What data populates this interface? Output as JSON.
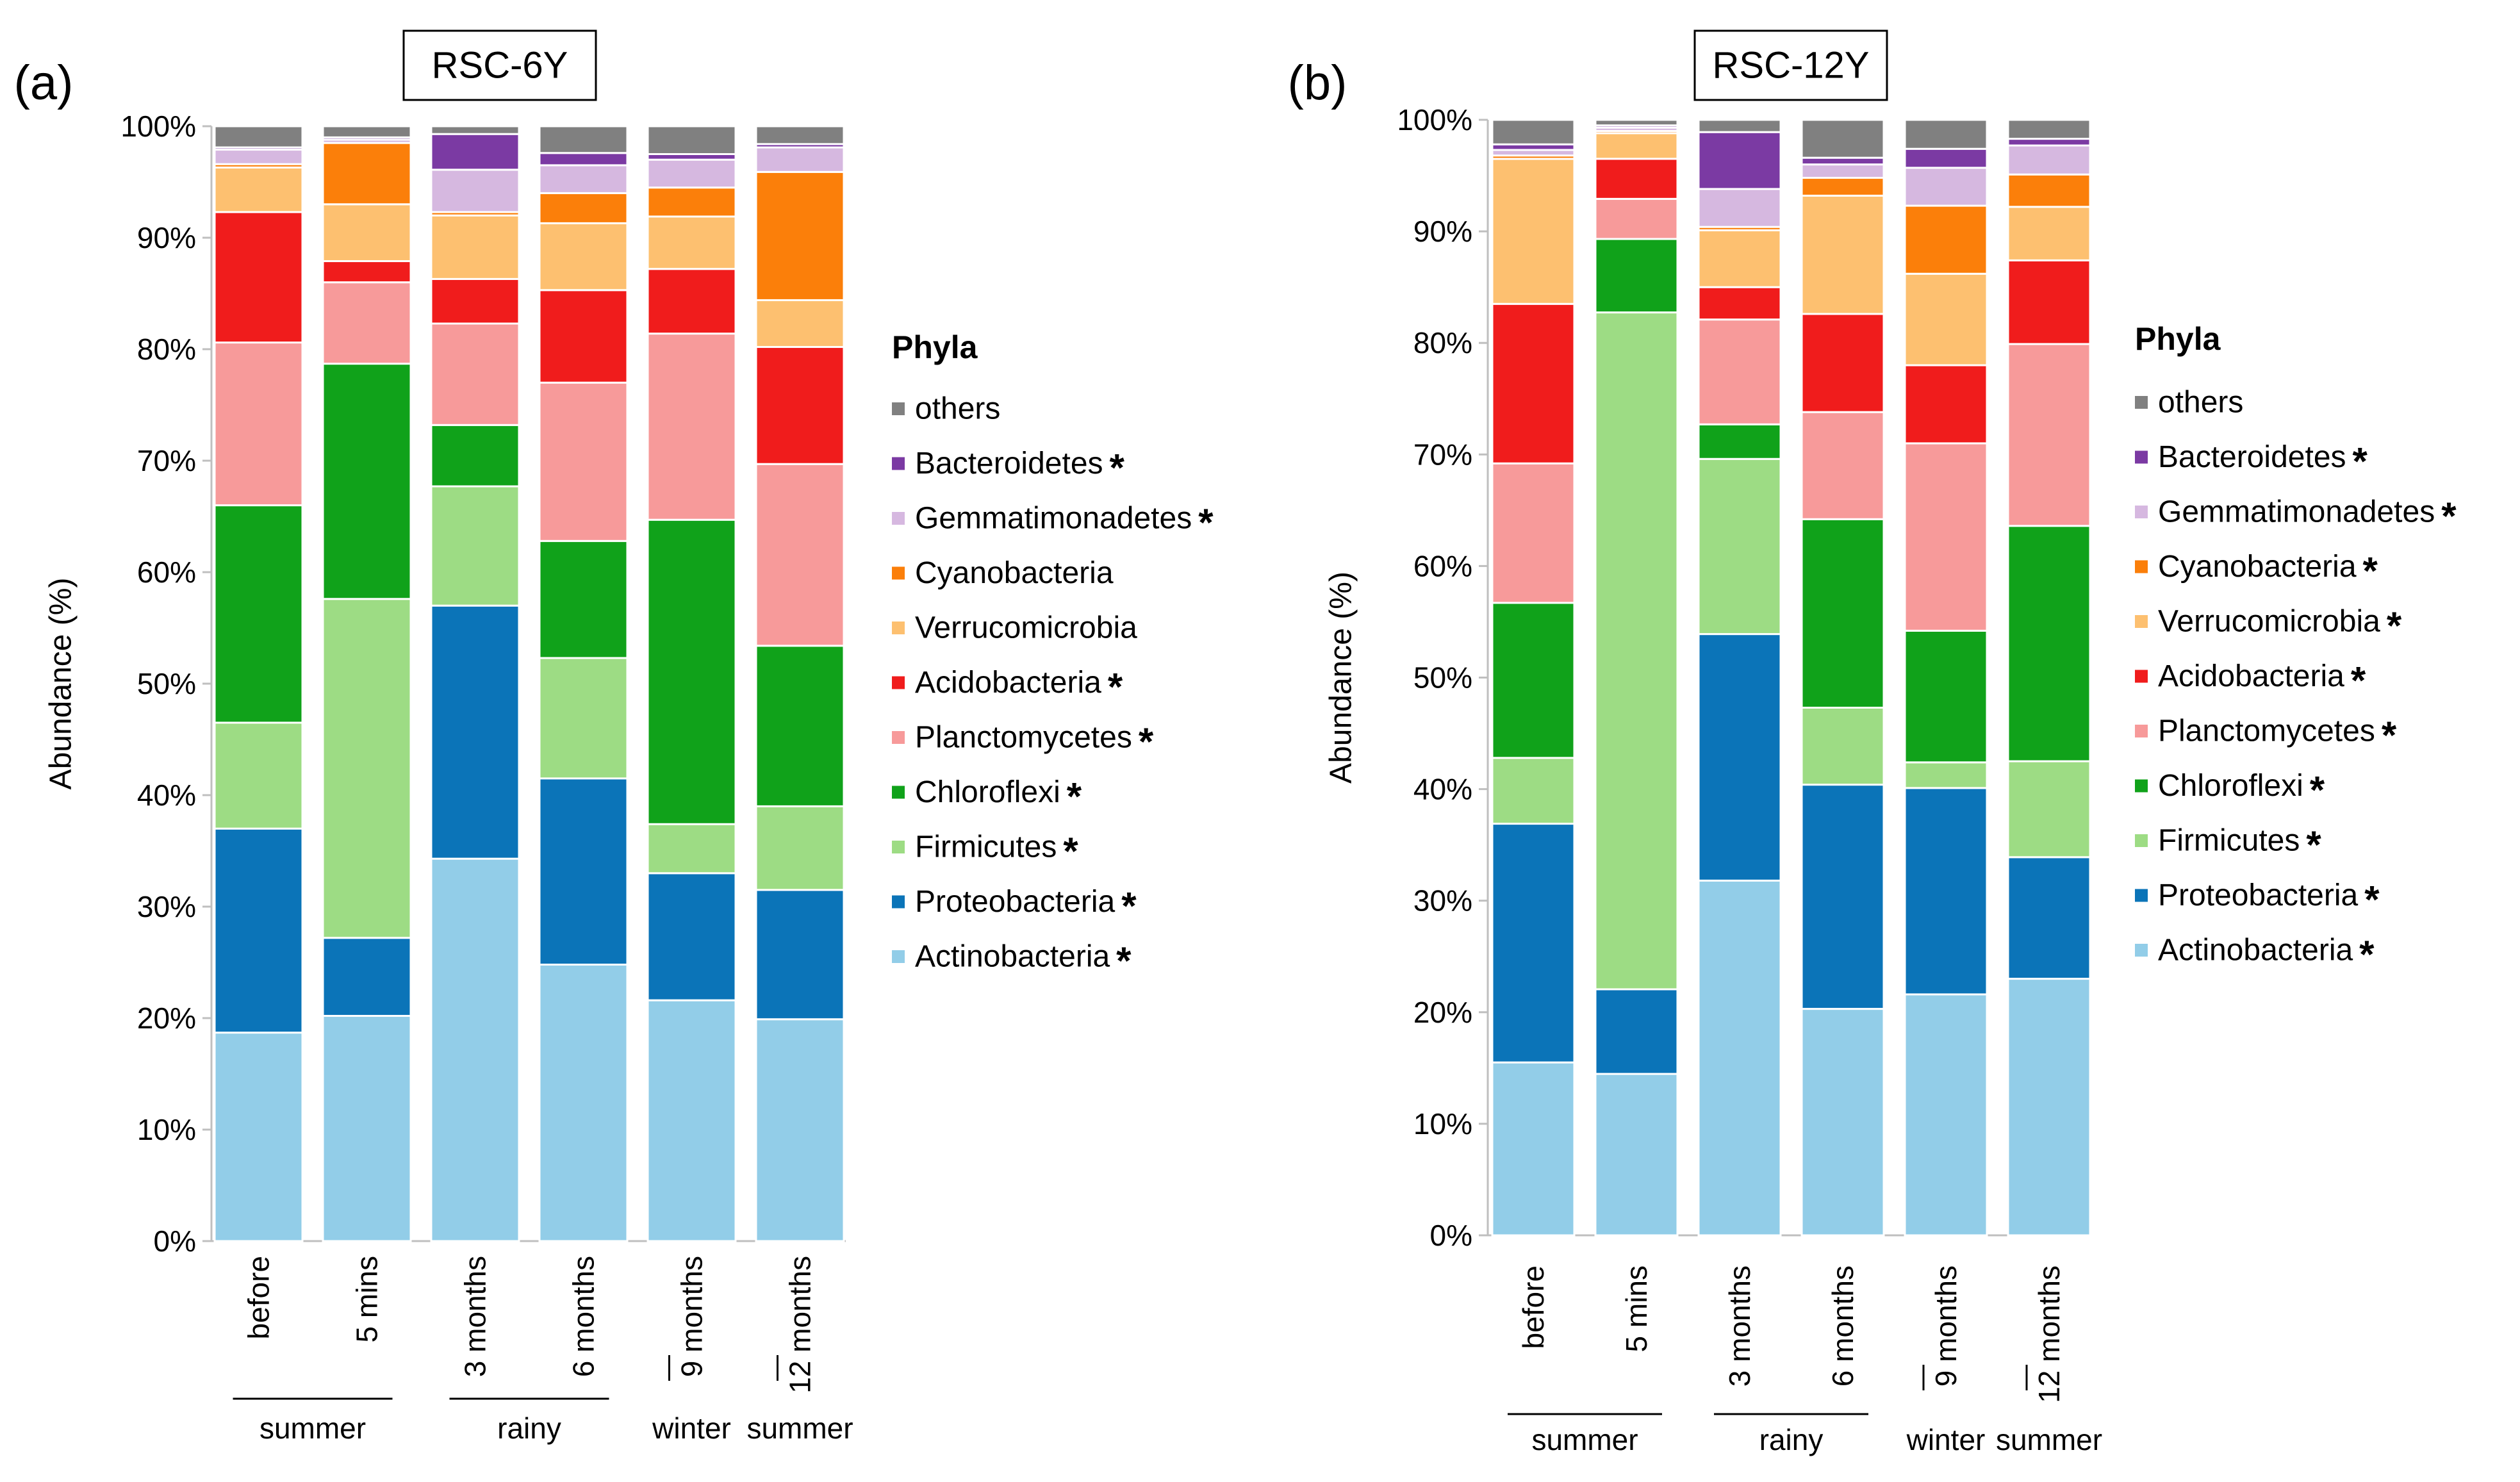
{
  "chart_data": [
    {
      "panel_label": "(a)",
      "title": "RSC-6Y",
      "type": "bar",
      "stacked": true,
      "xlabel": "",
      "ylabel": "Abundance (%)",
      "ylim": [
        0,
        100
      ],
      "yticks": [
        "0%",
        "10%",
        "20%",
        "30%",
        "40%",
        "50%",
        "60%",
        "70%",
        "80%",
        "90%",
        "100%"
      ],
      "grid": false,
      "legend_title": "Phyla",
      "legend_position": "right",
      "categories": [
        "before",
        "5 mins",
        "3 months",
        "6 months",
        "9 months",
        "12 months"
      ],
      "season_groups": [
        {
          "label": "summer",
          "from": 0,
          "to": 1,
          "style": "line"
        },
        {
          "label": "rainy",
          "from": 2,
          "to": 3,
          "style": "line"
        },
        {
          "label": "winter",
          "from": 4,
          "to": 4,
          "style": "tick"
        },
        {
          "label": "summer",
          "from": 5,
          "to": 5,
          "style": "tick"
        }
      ],
      "series": [
        {
          "name": "Actinobacteria",
          "marker": "*",
          "values": [
            18.7,
            20.2,
            34.3,
            24.8,
            21.6,
            19.9
          ]
        },
        {
          "name": "Proteobacteria",
          "marker": "*",
          "values": [
            18.3,
            7.0,
            22.7,
            16.7,
            11.4,
            11.6
          ]
        },
        {
          "name": "Firmicutes",
          "marker": "*",
          "values": [
            9.5,
            30.4,
            10.7,
            10.8,
            4.4,
            7.5
          ]
        },
        {
          "name": "Chloroflexi",
          "marker": "*",
          "values": [
            19.5,
            21.1,
            5.5,
            10.5,
            27.3,
            14.4
          ]
        },
        {
          "name": "Planctomycetes",
          "marker": "*",
          "values": [
            14.6,
            7.3,
            9.1,
            14.2,
            16.7,
            16.3
          ]
        },
        {
          "name": "Acidobacteria",
          "marker": "*",
          "values": [
            11.7,
            1.9,
            4.0,
            8.3,
            5.8,
            10.5
          ]
        },
        {
          "name": "Verrucomicrobia",
          "marker": "",
          "values": [
            4.0,
            5.1,
            5.7,
            6.0,
            4.7,
            4.2
          ]
        },
        {
          "name": "Cyanobacteria",
          "marker": "",
          "values": [
            0.3,
            5.5,
            0.3,
            2.7,
            2.6,
            11.5
          ]
        },
        {
          "name": "Gemmatimonadetes",
          "marker": "*",
          "values": [
            1.3,
            0.3,
            3.8,
            2.5,
            2.5,
            2.2
          ]
        },
        {
          "name": "Bacteroidetes",
          "marker": "*",
          "values": [
            0.2,
            0.2,
            3.2,
            1.1,
            0.5,
            0.3
          ]
        },
        {
          "name": "others",
          "marker": "",
          "values": [
            1.9,
            1.0,
            0.7,
            2.4,
            2.5,
            1.6
          ]
        }
      ]
    },
    {
      "panel_label": "(b)",
      "title": "RSC-12Y",
      "type": "bar",
      "stacked": true,
      "xlabel": "",
      "ylabel": "Abundance (%)",
      "ylim": [
        0,
        100
      ],
      "yticks": [
        "0%",
        "10%",
        "20%",
        "30%",
        "40%",
        "50%",
        "60%",
        "70%",
        "80%",
        "90%",
        "100%"
      ],
      "grid": false,
      "legend_title": "Phyla",
      "legend_position": "right",
      "categories": [
        "before",
        "5 mins",
        "3 months",
        "6 months",
        "9 months",
        "12 months"
      ],
      "season_groups": [
        {
          "label": "summer",
          "from": 0,
          "to": 1,
          "style": "line"
        },
        {
          "label": "rainy",
          "from": 2,
          "to": 3,
          "style": "line"
        },
        {
          "label": "winter",
          "from": 4,
          "to": 4,
          "style": "tick"
        },
        {
          "label": "summer",
          "from": 5,
          "to": 5,
          "style": "tick"
        }
      ],
      "series": [
        {
          "name": "Actinobacteria",
          "marker": "*",
          "values": [
            15.5,
            14.5,
            31.8,
            20.3,
            21.6,
            23.0
          ]
        },
        {
          "name": "Proteobacteria",
          "marker": "*",
          "values": [
            21.4,
            7.6,
            22.1,
            20.1,
            18.5,
            10.9
          ]
        },
        {
          "name": "Firmicutes",
          "marker": "*",
          "values": [
            5.9,
            60.8,
            15.7,
            6.9,
            2.3,
            8.6
          ]
        },
        {
          "name": "Chloroflexi",
          "marker": "*",
          "values": [
            13.9,
            6.6,
            3.1,
            16.9,
            11.8,
            21.1
          ]
        },
        {
          "name": "Planctomycetes",
          "marker": "*",
          "values": [
            12.5,
            3.6,
            9.4,
            9.6,
            16.8,
            16.3
          ]
        },
        {
          "name": "Acidobacteria",
          "marker": "*",
          "values": [
            14.3,
            3.6,
            2.9,
            8.8,
            7.0,
            7.5
          ]
        },
        {
          "name": "Verrucomicrobia",
          "marker": "*",
          "values": [
            13.0,
            2.3,
            5.1,
            10.6,
            8.2,
            4.8
          ]
        },
        {
          "name": "Cyanobacteria",
          "marker": "*",
          "values": [
            0.3,
            0.2,
            0.3,
            1.6,
            6.1,
            2.9
          ]
        },
        {
          "name": "Gemmatimonadetes",
          "marker": "*",
          "values": [
            0.5,
            0.3,
            3.4,
            1.2,
            3.4,
            2.6
          ]
        },
        {
          "name": "Bacteroidetes",
          "marker": "*",
          "values": [
            0.5,
            0.2,
            5.1,
            0.6,
            1.7,
            0.6
          ]
        },
        {
          "name": "others",
          "marker": "",
          "values": [
            2.2,
            0.5,
            1.1,
            3.4,
            2.6,
            1.7
          ]
        }
      ]
    }
  ],
  "colors": {
    "Actinobacteria": "#92cde8",
    "Proteobacteria": "#0b74b8",
    "Firmicutes": "#9ddc84",
    "Chloroflexi": "#10a21a",
    "Planctomycetes": "#f79a9a",
    "Acidobacteria": "#f01c1c",
    "Verrucomicrobia": "#fdc070",
    "Cyanobacteria": "#fb7f0a",
    "Gemmatimonadetes": "#d6b8e0",
    "Bacteroidetes": "#7b3aa3",
    "others": "#808080",
    "axis": "#bfbfbf",
    "text": "#000000"
  }
}
